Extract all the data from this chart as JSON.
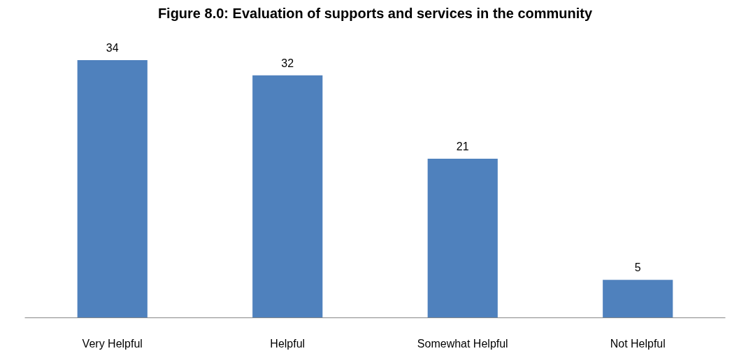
{
  "chart_data": {
    "type": "bar",
    "title": "Figure 8.0: Evaluation of supports and services in the community",
    "categories": [
      "Very Helpful",
      "Helpful",
      "Somewhat Helpful",
      "Not Helpful"
    ],
    "values": [
      34,
      32,
      21,
      5
    ],
    "color": "#4f81bd",
    "data_labels": true
  }
}
